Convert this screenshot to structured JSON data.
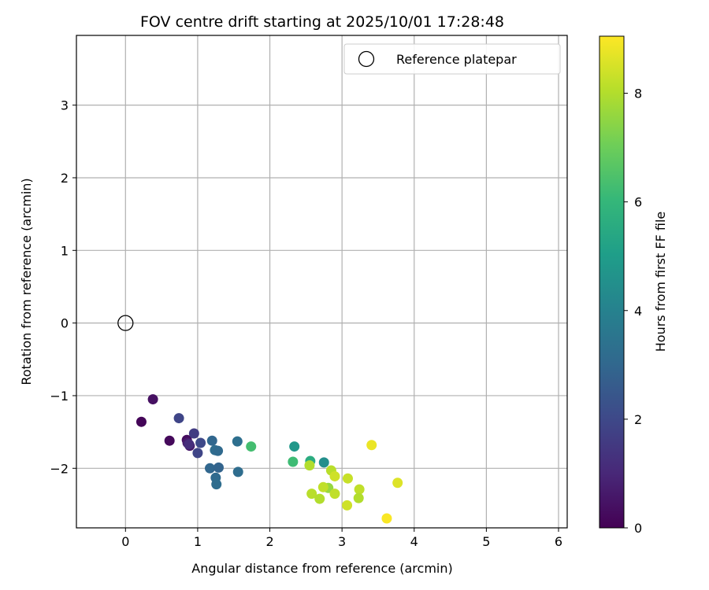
{
  "chart_data": {
    "type": "scatter",
    "title": "FOV centre drift starting at 2025/10/01 17:28:48",
    "xlabel": "Angular distance from reference (arcmin)",
    "ylabel": "Rotation from reference (arcmin)",
    "xlim": [
      -0.68,
      6.12
    ],
    "ylim": [
      -2.82,
      3.96
    ],
    "xticks": [
      0,
      1,
      2,
      3,
      4,
      5,
      6
    ],
    "yticks": [
      -2,
      -1,
      0,
      1,
      2,
      3
    ],
    "grid": true,
    "legend": {
      "location": "upper right",
      "entries": [
        "Reference platepar"
      ]
    },
    "reference_point": {
      "x": 0.0,
      "y": 0.0,
      "label": "Reference platepar"
    },
    "colorbar": {
      "label": "Hours from first FF file",
      "range": [
        0,
        9.05
      ],
      "ticks": [
        0,
        2,
        4,
        6,
        8
      ],
      "colormap": "viridis"
    },
    "colormap_stops": [
      "#440154",
      "#482878",
      "#3e4989",
      "#31688e",
      "#26828e",
      "#1f9e89",
      "#35b779",
      "#6ece58",
      "#b5de2b",
      "#fde725"
    ],
    "points": [
      {
        "x": 0.22,
        "y": -1.36,
        "hours": 0.1
      },
      {
        "x": 0.38,
        "y": -1.05,
        "hours": 0.4
      },
      {
        "x": 0.61,
        "y": -1.62,
        "hours": 0.2
      },
      {
        "x": 0.85,
        "y": -1.61,
        "hours": 0.3
      },
      {
        "x": 0.86,
        "y": -1.65,
        "hours": 0.7
      },
      {
        "x": 0.89,
        "y": -1.69,
        "hours": 0.6
      },
      {
        "x": 0.88,
        "y": -1.67,
        "hours": 1.2
      },
      {
        "x": 0.74,
        "y": -1.31,
        "hours": 1.9
      },
      {
        "x": 0.95,
        "y": -1.52,
        "hours": 1.6
      },
      {
        "x": 1.04,
        "y": -1.65,
        "hours": 2.0
      },
      {
        "x": 1.0,
        "y": -1.79,
        "hours": 1.9
      },
      {
        "x": 1.2,
        "y": -1.62,
        "hours": 3.0
      },
      {
        "x": 1.24,
        "y": -1.75,
        "hours": 3.2
      },
      {
        "x": 1.28,
        "y": -1.76,
        "hours": 3.1
      },
      {
        "x": 1.17,
        "y": -2.0,
        "hours": 3.0
      },
      {
        "x": 1.29,
        "y": -1.99,
        "hours": 2.9
      },
      {
        "x": 1.25,
        "y": -2.13,
        "hours": 3.1
      },
      {
        "x": 1.26,
        "y": -2.22,
        "hours": 3.2
      },
      {
        "x": 1.55,
        "y": -1.63,
        "hours": 3.3
      },
      {
        "x": 1.56,
        "y": -2.05,
        "hours": 3.2
      },
      {
        "x": 1.74,
        "y": -1.7,
        "hours": 6.3
      },
      {
        "x": 2.34,
        "y": -1.7,
        "hours": 4.8
      },
      {
        "x": 2.32,
        "y": -1.91,
        "hours": 6.2
      },
      {
        "x": 2.56,
        "y": -1.9,
        "hours": 5.6
      },
      {
        "x": 2.75,
        "y": -1.92,
        "hours": 4.5
      },
      {
        "x": 2.55,
        "y": -1.96,
        "hours": 8.0
      },
      {
        "x": 2.85,
        "y": -2.03,
        "hours": 8.1
      },
      {
        "x": 2.9,
        "y": -2.11,
        "hours": 8.4
      },
      {
        "x": 3.08,
        "y": -2.14,
        "hours": 8.3
      },
      {
        "x": 2.81,
        "y": -2.27,
        "hours": 7.6
      },
      {
        "x": 2.74,
        "y": -2.26,
        "hours": 8.2
      },
      {
        "x": 2.58,
        "y": -2.35,
        "hours": 8.1
      },
      {
        "x": 2.9,
        "y": -2.35,
        "hours": 8.2
      },
      {
        "x": 2.69,
        "y": -2.42,
        "hours": 8.0
      },
      {
        "x": 3.24,
        "y": -2.29,
        "hours": 8.2
      },
      {
        "x": 3.23,
        "y": -2.41,
        "hours": 8.0
      },
      {
        "x": 3.07,
        "y": -2.51,
        "hours": 8.4
      },
      {
        "x": 3.41,
        "y": -1.68,
        "hours": 8.8
      },
      {
        "x": 3.77,
        "y": -2.2,
        "hours": 8.6
      },
      {
        "x": 3.62,
        "y": -2.69,
        "hours": 9.0
      }
    ]
  }
}
